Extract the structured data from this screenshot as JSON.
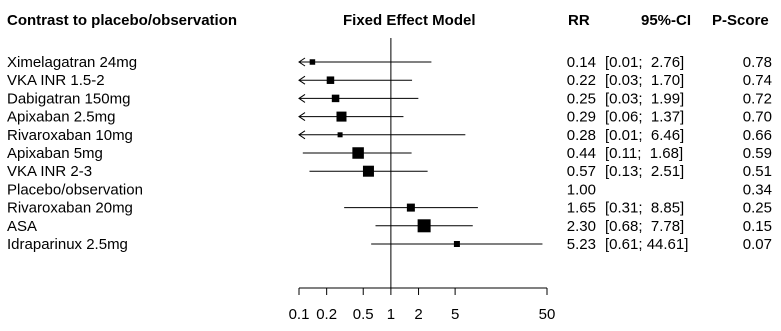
{
  "headers": {
    "contrast": "Contrast to placebo/observation",
    "model": "Fixed Effect Model",
    "rr": "RR",
    "ci": "95%-CI",
    "pscore": "P-Score"
  },
  "chart_data": {
    "type": "forest",
    "xscale": "log",
    "xlim": [
      0.1,
      50
    ],
    "reference_line": 1,
    "xticks": [
      {
        "value": 0.1,
        "label": "0.1"
      },
      {
        "value": 0.2,
        "label": "0.2"
      },
      {
        "value": 0.5,
        "label": "0.5"
      },
      {
        "value": 1,
        "label": "1"
      },
      {
        "value": 2,
        "label": "2"
      },
      {
        "value": 5,
        "label": "5"
      },
      {
        "value": 50,
        "label": "50"
      }
    ],
    "rows": [
      {
        "label": "Ximelagatran 24mg",
        "rr": 0.14,
        "lo": 0.01,
        "hi": 2.76,
        "rr_text": "0.14",
        "ci_text": "[0.01;  2.76]",
        "pscore": "0.78",
        "weight": 0.55
      },
      {
        "label": "VKA INR 1.5-2",
        "rr": 0.22,
        "lo": 0.03,
        "hi": 1.7,
        "rr_text": "0.22",
        "ci_text": "[0.03;  1.70]",
        "pscore": "0.74",
        "weight": 0.75
      },
      {
        "label": "Dabigatran 150mg",
        "rr": 0.25,
        "lo": 0.03,
        "hi": 1.99,
        "rr_text": "0.25",
        "ci_text": "[0.03;  1.99]",
        "pscore": "0.72",
        "weight": 0.75
      },
      {
        "label": "Apixaban 2.5mg",
        "rr": 0.29,
        "lo": 0.06,
        "hi": 1.37,
        "rr_text": "0.29",
        "ci_text": "[0.06;  1.37]",
        "pscore": "0.70",
        "weight": 1.0
      },
      {
        "label": "Rivaroxaban 10mg",
        "rr": 0.28,
        "lo": 0.01,
        "hi": 6.46,
        "rr_text": "0.28",
        "ci_text": "[0.01;  6.46]",
        "pscore": "0.66",
        "weight": 0.5
      },
      {
        "label": "Apixaban 5mg",
        "rr": 0.44,
        "lo": 0.11,
        "hi": 1.68,
        "rr_text": "0.44",
        "ci_text": "[0.11;  1.68]",
        "pscore": "0.59",
        "weight": 1.15
      },
      {
        "label": "VKA INR 2-3",
        "rr": 0.57,
        "lo": 0.13,
        "hi": 2.51,
        "rr_text": "0.57",
        "ci_text": "[0.13;  2.51]",
        "pscore": "0.51",
        "weight": 1.1
      },
      {
        "label": "Placebo/observation",
        "rr": 1.0,
        "lo": null,
        "hi": null,
        "rr_text": "1.00",
        "ci_text": "",
        "pscore": "0.34",
        "weight": 0
      },
      {
        "label": "Rivaroxaban 20mg",
        "rr": 1.65,
        "lo": 0.31,
        "hi": 8.85,
        "rr_text": "1.65",
        "ci_text": "[0.31;  8.85]",
        "pscore": "0.25",
        "weight": 0.8
      },
      {
        "label": "ASA",
        "rr": 2.3,
        "lo": 0.68,
        "hi": 7.78,
        "rr_text": "2.30",
        "ci_text": "[0.68;  7.78]",
        "pscore": "0.15",
        "weight": 1.3
      },
      {
        "label": "Idraparinux 2.5mg",
        "rr": 5.23,
        "lo": 0.61,
        "hi": 44.61,
        "rr_text": "5.23",
        "ci_text": "[0.61; 44.61]",
        "pscore": "0.07",
        "weight": 0.6
      }
    ]
  }
}
